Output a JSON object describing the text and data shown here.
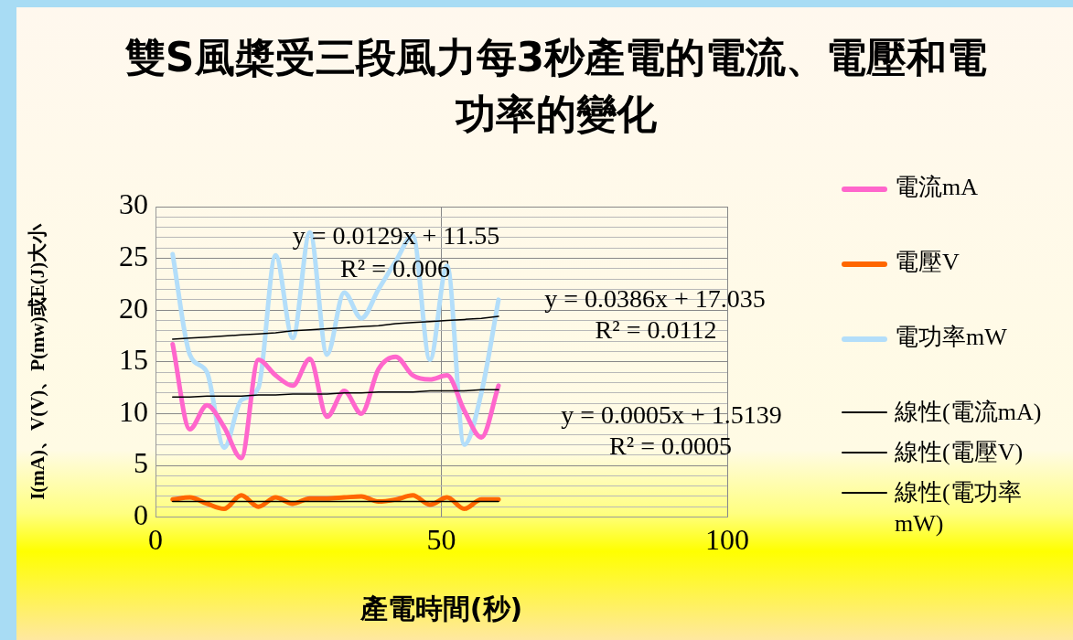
{
  "chart_data": {
    "type": "line",
    "title": "雙S風槳受三段風力每3秒產電的電流、電壓和電功率的變化",
    "xlabel": "產電時間(秒)",
    "ylabel": "I(mA)、V(V)、P(mw)或E(J)大小",
    "x": [
      3,
      6,
      9,
      12,
      15,
      18,
      21,
      24,
      27,
      30,
      33,
      36,
      39,
      42,
      45,
      48,
      51,
      54,
      57,
      60
    ],
    "series": [
      {
        "name": "電流mA",
        "color": "#ff66cc",
        "values": [
          16.7,
          8.5,
          10.8,
          8.7,
          5.7,
          15.2,
          13.7,
          12.7,
          15.3,
          9.7,
          12.2,
          10,
          14.3,
          15.5,
          13.7,
          13.3,
          13.7,
          10.3,
          7.7,
          12.7
        ]
      },
      {
        "name": "電壓V",
        "color": "#ff6600",
        "values": [
          1.7,
          1.9,
          1.3,
          0.8,
          2.1,
          1.0,
          1.9,
          1.3,
          1.8,
          1.8,
          1.9,
          2.0,
          1.5,
          1.7,
          2.1,
          1.2,
          1.9,
          0.8,
          1.7,
          1.7
        ]
      },
      {
        "name": "電功率mW",
        "color": "#b3defa",
        "values": [
          25.4,
          15.7,
          14,
          6.7,
          11.3,
          12.5,
          25.3,
          17.3,
          27.5,
          15.7,
          21.7,
          19.2,
          22,
          24.7,
          27.2,
          15.2,
          24.3,
          7,
          12,
          21
        ]
      },
      {
        "name": "線性(電流mA)",
        "type": "line",
        "color": "#000000",
        "values": [
          11.6,
          11.6,
          11.7,
          11.7,
          11.7,
          11.8,
          11.8,
          11.9,
          11.9,
          11.9,
          12.0,
          12.0,
          12.1,
          12.1,
          12.1,
          12.2,
          12.2,
          12.2,
          12.3,
          12.3
        ]
      },
      {
        "name": "線性(電壓V)",
        "type": "line",
        "color": "#000000",
        "values": [
          1.5,
          1.5,
          1.5,
          1.5,
          1.5,
          1.5,
          1.5,
          1.5,
          1.5,
          1.5,
          1.5,
          1.5,
          1.5,
          1.5,
          1.5,
          1.5,
          1.5,
          1.5,
          1.5,
          1.5
        ]
      },
      {
        "name": "線性(電功率mW)",
        "type": "line",
        "color": "#000000",
        "values": [
          17.2,
          17.3,
          17.4,
          17.5,
          17.6,
          17.7,
          17.8,
          18.0,
          18.1,
          18.2,
          18.3,
          18.4,
          18.5,
          18.7,
          18.8,
          18.9,
          19.0,
          19.1,
          19.2,
          19.4
        ]
      }
    ],
    "annotations": [
      "y = 0.0129x + 11.55",
      "R² = 0.006",
      "y = 0.0386x + 17.035",
      "R² = 0.0112",
      "y = 0.0005x + 1.5139",
      "R² = 0.0005"
    ],
    "xlim": [
      0,
      100
    ],
    "xticks": [
      0,
      50,
      100
    ],
    "ylim": [
      0,
      30
    ],
    "yticks": [
      0,
      {
        "value": 1,
        "label": null
      },
      {
        "value": 2,
        "label": null
      },
      {
        "value": 3,
        "label": null
      },
      {
        "value": 4,
        "label": null
      },
      5,
      {
        "value": 6,
        "label": null
      },
      {
        "value": 7,
        "label": null
      },
      {
        "value": 8,
        "label": null
      },
      {
        "value": 9,
        "label": null
      },
      10,
      {
        "value": 11,
        "label": null
      },
      {
        "value": 12,
        "label": null
      },
      {
        "value": 13,
        "label": null
      },
      {
        "value": 14,
        "label": null
      },
      15,
      {
        "value": 16,
        "label": null
      },
      {
        "value": 17,
        "label": null
      },
      {
        "value": 18,
        "label": null
      },
      {
        "value": 19,
        "label": null
      },
      20,
      {
        "value": 21,
        "label": null
      },
      {
        "value": 22,
        "label": null
      },
      {
        "value": 23,
        "label": null
      },
      {
        "value": 24,
        "label": null
      },
      25,
      {
        "value": 26,
        "label": null
      },
      {
        "value": 27,
        "label": null
      },
      {
        "value": 28,
        "label": null
      },
      {
        "value": 29,
        "label": null
      },
      30
    ],
    "grid": true,
    "legend": "right",
    "marker": "none",
    "line_style": "solid"
  }
}
